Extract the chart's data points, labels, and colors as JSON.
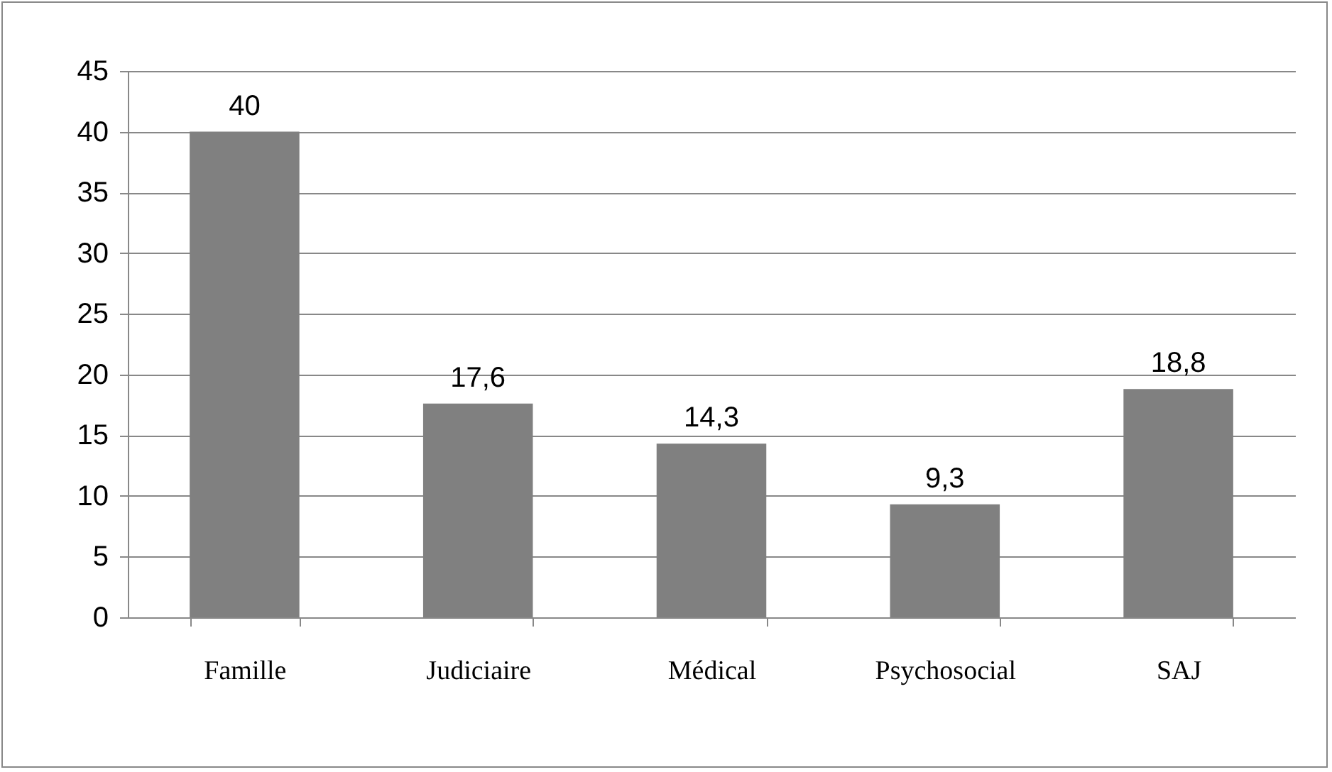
{
  "chart_data": {
    "type": "bar",
    "categories": [
      "Famille",
      "Judiciaire",
      "Médical",
      "Psychosocial",
      "SAJ"
    ],
    "values": [
      40,
      17.6,
      14.3,
      9.3,
      18.8
    ],
    "value_labels": [
      "40",
      "17,6",
      "14,3",
      "9,3",
      "18,8"
    ],
    "color": "#808080",
    "ylim": [
      0,
      45
    ],
    "yticks": [
      0,
      5,
      10,
      15,
      20,
      25,
      30,
      35,
      40,
      45
    ],
    "grid": "y"
  }
}
